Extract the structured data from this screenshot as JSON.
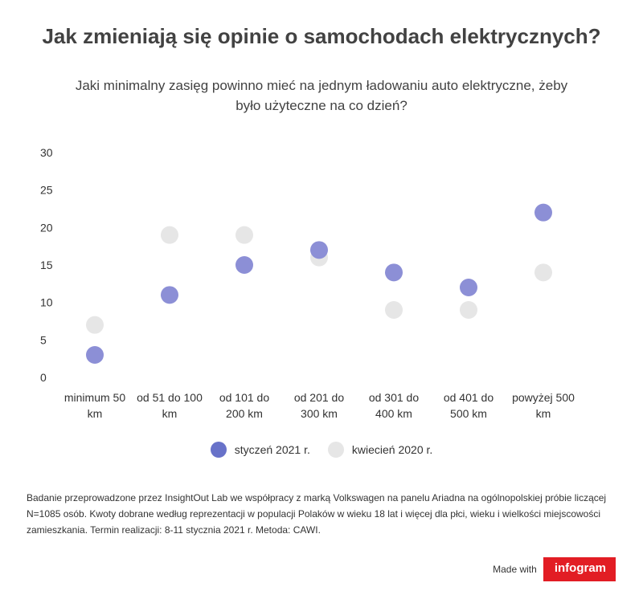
{
  "chart_data": {
    "type": "scatter",
    "title": "Jak zmieniają się opinie o samochodach elektrycznych?",
    "subtitle": "Jaki minimalny zasięg powinno mieć na jednym ładowaniu auto elektryczne, żeby było użyteczne na co dzień?",
    "categories": [
      [
        "minimum 50",
        "km"
      ],
      [
        "od 51 do 100",
        "km"
      ],
      [
        "od 101 do",
        "200 km"
      ],
      [
        "od 201 do",
        "300 km"
      ],
      [
        "od 301 do",
        "400 km"
      ],
      [
        "od 401 do",
        "500 km"
      ],
      [
        "powyżej 500",
        "km"
      ]
    ],
    "yticks": [
      0,
      5,
      10,
      15,
      20,
      25,
      30
    ],
    "ylim": [
      0,
      30
    ],
    "grid": false,
    "legend_position": "bottom-center",
    "series": [
      {
        "name": "kwiecień 2020 r.",
        "color": "#e6e6e6",
        "values": [
          7,
          19,
          19,
          16,
          9,
          9,
          14
        ]
      },
      {
        "name": "styczeń 2021 r.",
        "color": "#8c8fd6",
        "values": [
          3,
          11,
          15,
          17,
          14,
          12,
          22
        ]
      }
    ]
  },
  "legend": {
    "items": [
      {
        "label": "styczeń 2021 r.",
        "color": "#6872c9"
      },
      {
        "label": "kwiecień 2020 r.",
        "color": "#e6e6e6"
      }
    ]
  },
  "footnote": "Badanie przeprowadzone przez InsightOut Lab we współpracy z marką Volkswagen na panelu Ariadna na ogólnopolskiej próbie liczącej N=1085 osób. Kwoty dobrane według reprezentacji w populacji Polaków w wieku 18 lat i więcej dla płci, wieku i wielkości miejscowości zamieszkania. Termin realizacji: 8-11 stycznia 2021 r. Metoda: CAWI.",
  "footer": {
    "made_with": "Made with",
    "brand": "infogram",
    "brand_color": "#e21d24"
  }
}
